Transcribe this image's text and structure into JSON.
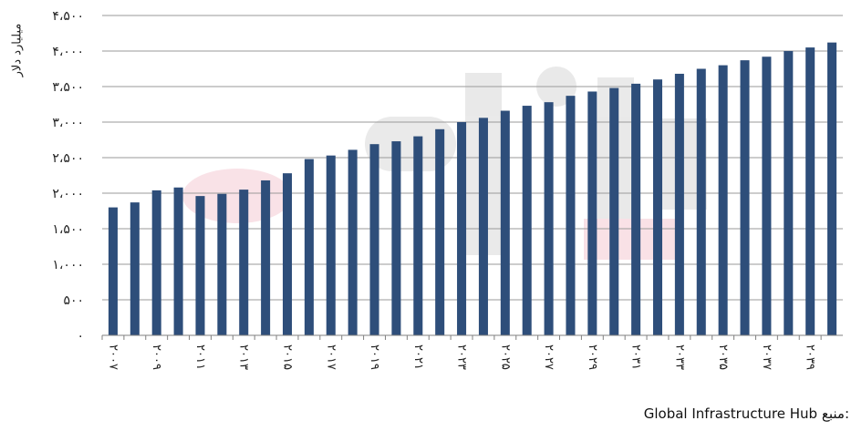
{
  "chart_data": {
    "type": "bar",
    "ylabel": "میلیارد دلار",
    "source_label": "منبع:",
    "source_value": "Global Infrastructure Hub",
    "ylim": [
      0,
      4500
    ],
    "yticks": [
      0,
      500,
      1000,
      1500,
      2000,
      2500,
      3000,
      3500,
      4000,
      4500
    ],
    "ytick_labels": [
      "۰",
      "۵۰۰",
      "۱،۰۰۰",
      "۱،۵۰۰",
      "۲،۰۰۰",
      "۲،۵۰۰",
      "۳،۰۰۰",
      "۳،۵۰۰",
      "۴،۰۰۰",
      "۴،۵۰۰"
    ],
    "grid": true,
    "bar_color": "#2E4E7A",
    "categories": [
      "2007",
      "2008",
      "2009",
      "2010",
      "2011",
      "2012",
      "2013",
      "2014",
      "2015",
      "2016",
      "2017",
      "2018",
      "2019",
      "2020",
      "2021",
      "2022",
      "2023",
      "2024",
      "2025",
      "2026",
      "2027",
      "2028",
      "2029",
      "2030",
      "2031",
      "2032",
      "2033",
      "2034",
      "2035",
      "2036",
      "2037",
      "2038",
      "2039",
      "2040"
    ],
    "xtick_labels": [
      "۲۰۰۷",
      "",
      "۲۰۰۹",
      "",
      "۲۰۱۱",
      "",
      "۲۰۱۳",
      "",
      "۲۰۱۵",
      "",
      "۲۰۱۷",
      "",
      "۲۰۱۹",
      "",
      "۲۰۲۱",
      "",
      "۲۰۲۳",
      "",
      "۲۰۲۵",
      "",
      "۲۰۲۷",
      "",
      "۲۰۲۹",
      "",
      "۲۰۳۱",
      "",
      "۲۰۳۳",
      "",
      "۲۰۳۵",
      "",
      "۲۰۳۷",
      "",
      "۲۰۳۹",
      ""
    ],
    "values": [
      1800,
      1870,
      2040,
      2080,
      1960,
      1990,
      2050,
      2180,
      2280,
      2480,
      2530,
      2610,
      2690,
      2730,
      2800,
      2900,
      3000,
      3060,
      3160,
      3230,
      3280,
      3370,
      3430,
      3480,
      3540,
      3600,
      3680,
      3750,
      3800,
      3870,
      3920,
      4000,
      4050,
      4120
    ]
  }
}
